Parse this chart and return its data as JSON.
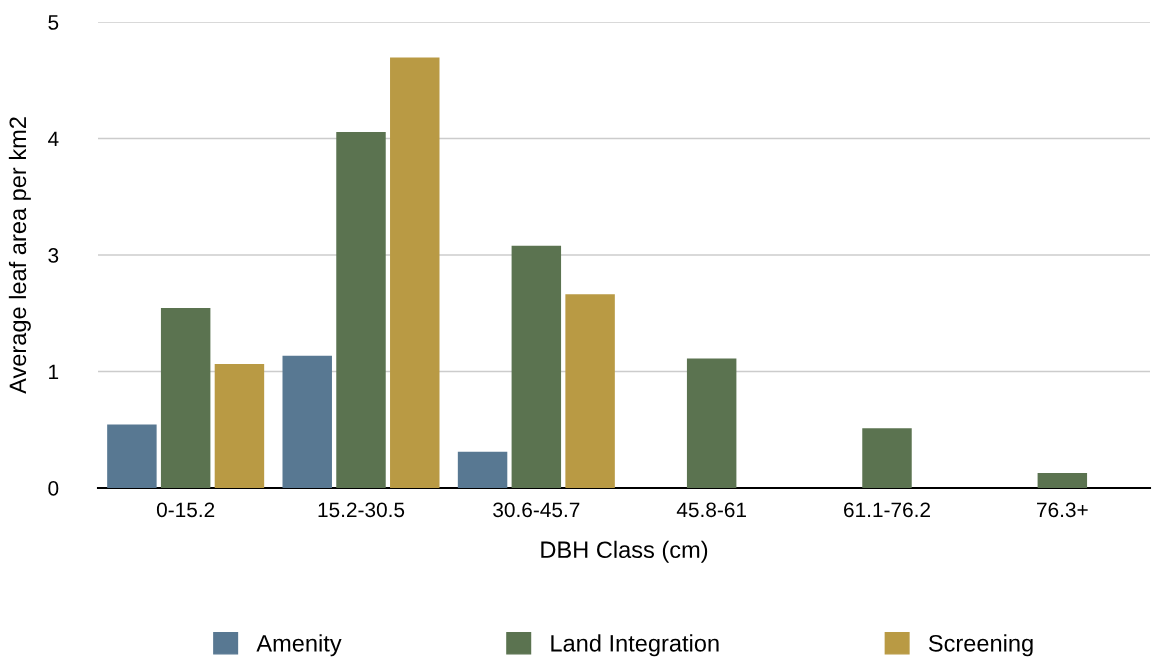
{
  "chart_data": {
    "type": "bar",
    "xlabel": "DBH Class (cm)",
    "ylabel": "Average leaf area per km2",
    "categories": [
      "0-15.2",
      "15.2-30.5",
      "30.6-45.7",
      "45.8-61",
      "61.1-76.2",
      "76.3+"
    ],
    "series": [
      {
        "name": "Amenity",
        "color": "#587892",
        "values": [
          0.68,
          1.42,
          0.39,
          0,
          0,
          0
        ]
      },
      {
        "name": "Land Integration",
        "color": "#5b7350",
        "values": [
          1.93,
          3.82,
          2.6,
          1.39,
          0.64,
          0.16
        ]
      },
      {
        "name": "Screening",
        "color": "#b99a44",
        "values": [
          1.33,
          4.62,
          2.08,
          0,
          0,
          0
        ]
      }
    ],
    "ylim": [
      0,
      5
    ],
    "yticks": [
      0,
      {
        "value": 1.25,
        "label": "1"
      },
      {
        "value": 2.5,
        "label": "3"
      },
      {
        "value": 3.75,
        "label": "4"
      },
      5
    ],
    "grid": "y",
    "legend": "bottom"
  }
}
